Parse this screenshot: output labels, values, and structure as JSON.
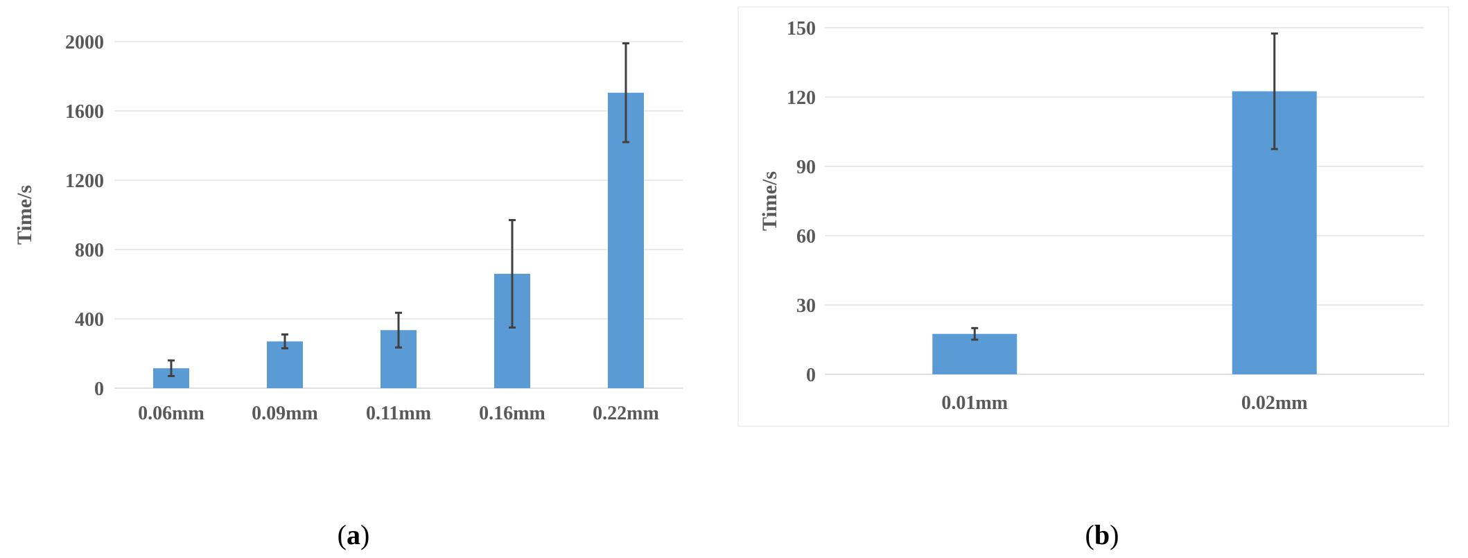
{
  "chart_data": [
    {
      "type": "bar",
      "panel": "a",
      "ylabel": "Time/s",
      "ylim": [
        0,
        2000
      ],
      "yticks": [
        0,
        400,
        800,
        1200,
        1600,
        2000
      ],
      "ytick_labels": [
        "0",
        "400",
        "800",
        "1200",
        "1600",
        "2000"
      ],
      "categories": [
        "0.06mm",
        "0.09mm",
        "0.11mm",
        "0.16mm",
        "0.22mm"
      ],
      "values": [
        115,
        270,
        335,
        660,
        1705
      ],
      "error": [
        45,
        40,
        100,
        310,
        285
      ],
      "grid": true,
      "bar_color": "#5b9bd5",
      "error_color": "#404040"
    },
    {
      "type": "bar",
      "panel": "b",
      "ylabel": "Time/s",
      "ylim": [
        0,
        150
      ],
      "yticks": [
        0,
        30,
        60,
        90,
        120,
        150
      ],
      "ytick_labels": [
        "0",
        "30",
        "60",
        "90",
        "120",
        "150"
      ],
      "categories": [
        "0.01mm",
        "0.02mm"
      ],
      "values": [
        17.5,
        122.5
      ],
      "error": [
        2.5,
        25
      ],
      "grid": true,
      "bar_color": "#5b9bd5",
      "error_color": "#404040"
    }
  ],
  "captions": {
    "a": "a",
    "b": "b"
  }
}
